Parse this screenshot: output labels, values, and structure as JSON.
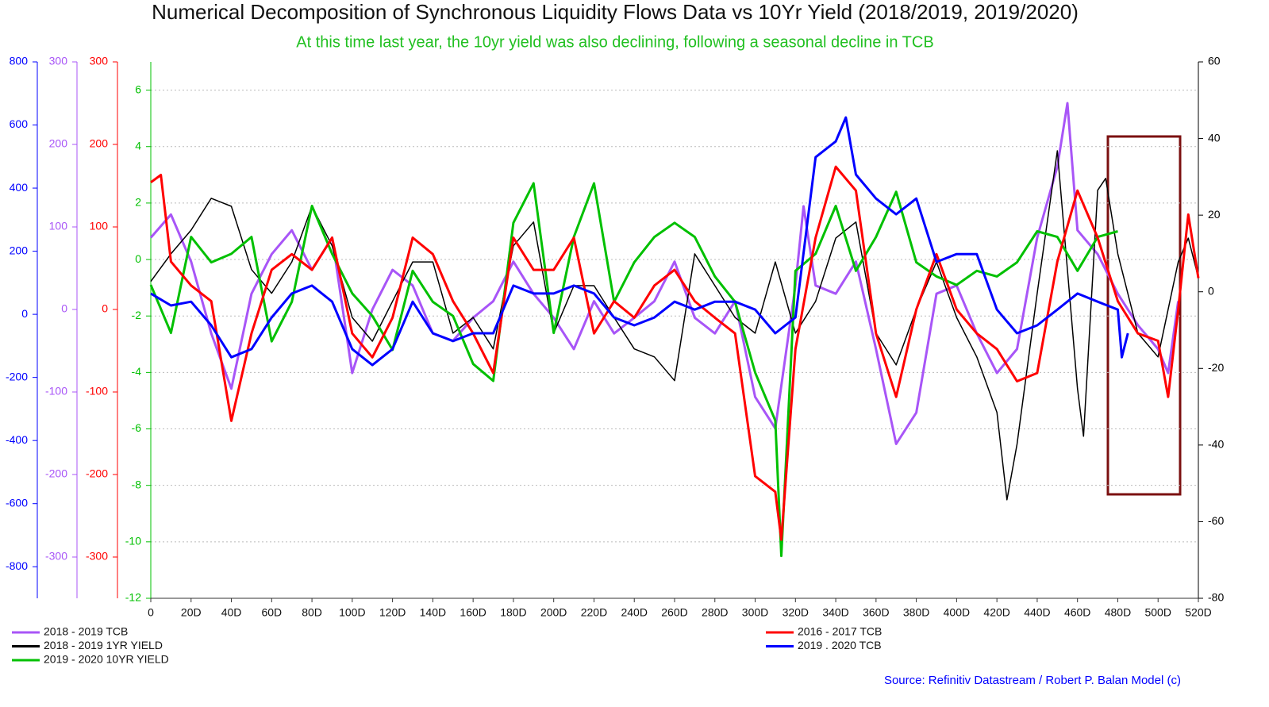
{
  "chart_data": {
    "type": "line",
    "title": "Numerical Decomposition of Synchronous Liquidity Flows Data vs 10Yr Yield (2018/2019, 2019/2020)",
    "subtitle": "At this time last year, the 10yr yield was also declining, following a seasonal decline in TCB",
    "source": "Source: Refinitiv Datastream /  Robert P. Balan Model (c)",
    "xlim": [
      0,
      520
    ],
    "xticks": [
      0,
      {
        "value": 20,
        "label": "20D"
      },
      {
        "value": 40,
        "label": "40D"
      },
      {
        "value": 60,
        "label": "60D"
      },
      {
        "value": 80,
        "label": "80D"
      },
      {
        "value": 100,
        "label": "100D"
      },
      {
        "value": 120,
        "label": "120D"
      },
      {
        "value": 140,
        "label": "140D"
      },
      {
        "value": 160,
        "label": "160D"
      },
      {
        "value": 180,
        "label": "180D"
      },
      {
        "value": 200,
        "label": "200D"
      },
      {
        "value": 220,
        "label": "220D"
      },
      {
        "value": 240,
        "label": "240D"
      },
      {
        "value": 260,
        "label": "260D"
      },
      {
        "value": 280,
        "label": "280D"
      },
      {
        "value": 300,
        "label": "300D"
      },
      {
        "value": 320,
        "label": "320D"
      },
      {
        "value": 340,
        "label": "340D"
      },
      {
        "value": 360,
        "label": "360D"
      },
      {
        "value": 380,
        "label": "380D"
      },
      {
        "value": 400,
        "label": "400D"
      },
      {
        "value": 420,
        "label": "420D"
      },
      {
        "value": 440,
        "label": "440D"
      },
      {
        "value": 460,
        "label": "460D"
      },
      {
        "value": 480,
        "label": "480D"
      },
      {
        "value": 500,
        "label": "500D"
      },
      {
        "value": 520,
        "label": "520D"
      }
    ],
    "ylim": [
      -12,
      7
    ],
    "yticks": [
      -12,
      -10,
      -8,
      -6,
      -4,
      -2,
      0,
      2,
      4,
      6
    ],
    "ycolor": "#00c000",
    "y2lim": [
      -80,
      60
    ],
    "y2ticks": [
      -80,
      -60,
      -40,
      -20,
      0,
      20,
      40,
      60
    ],
    "y2color": "#000000",
    "y3lim": [
      -900,
      800
    ],
    "y3ticks": [
      -800,
      -600,
      -400,
      -200,
      0,
      200,
      400,
      600,
      800
    ],
    "y3color": "#0000ff",
    "y4lim": [
      -350,
      300
    ],
    "y4ticks": [
      -300,
      -200,
      -100,
      0,
      100,
      200,
      300
    ],
    "y4color": "#a855f7",
    "y5lim": [
      -350,
      300
    ],
    "y5ticks": [
      -300,
      -200,
      -100,
      0,
      100,
      200,
      300
    ],
    "y5color": "#ff0000",
    "grid": true,
    "series": [
      {
        "name": "2018 - 2019 TCB",
        "color": "#a855f7",
        "axis": "y4",
        "x": [
          0,
          10,
          20,
          30,
          40,
          50,
          60,
          70,
          80,
          90,
          100,
          110,
          120,
          130,
          140,
          150,
          160,
          170,
          180,
          190,
          200,
          210,
          220,
          230,
          240,
          250,
          260,
          270,
          280,
          290,
          300,
          310,
          320,
          324,
          330,
          340,
          350,
          360,
          370,
          380,
          390,
          400,
          410,
          420,
          430,
          440,
          450,
          455,
          460,
          470,
          480,
          490,
          500,
          505,
          510
        ],
        "values": [
          87,
          115,
          58,
          -29,
          -96,
          19,
          67,
          96,
          48,
          87,
          -77,
          0,
          48,
          29,
          -29,
          -38,
          -10,
          10,
          58,
          19,
          -10,
          -48,
          10,
          -29,
          -10,
          10,
          58,
          -10,
          -29,
          10,
          -106,
          -144,
          29,
          125,
          29,
          19,
          58,
          -48,
          -163,
          -125,
          19,
          29,
          -29,
          -77,
          -48,
          87,
          173,
          250,
          96,
          67,
          19,
          -19,
          -48,
          -77,
          10
        ]
      },
      {
        "name": "2018 - 2019 1YR YIELD",
        "color": "#000000",
        "axis": "y2",
        "x": [
          0,
          10,
          20,
          30,
          40,
          50,
          60,
          70,
          80,
          90,
          100,
          110,
          120,
          130,
          140,
          150,
          160,
          170,
          180,
          190,
          200,
          210,
          220,
          230,
          240,
          250,
          260,
          270,
          280,
          290,
          300,
          310,
          320,
          330,
          340,
          350,
          360,
          370,
          380,
          390,
          400,
          410,
          420,
          425,
          430,
          440,
          450,
          460,
          463,
          470,
          474,
          480,
          490,
          500,
          510,
          515,
          520
        ],
        "values": [
          2.7,
          9.9,
          16.1,
          24.4,
          22.3,
          5.8,
          -0.4,
          7.8,
          22.3,
          12.0,
          -6.7,
          -12.9,
          -2.5,
          7.8,
          7.8,
          -10.8,
          -6.7,
          -14.9,
          12.0,
          18.2,
          -10.8,
          1.6,
          1.6,
          -6.7,
          -14.9,
          -17.0,
          -23.2,
          9.9,
          1.6,
          -6.7,
          -10.8,
          7.8,
          -10.8,
          -2.5,
          14.0,
          18.2,
          -10.8,
          -19.1,
          -4.6,
          7.8,
          -6.7,
          -17.0,
          -31.5,
          -54.3,
          -39.8,
          -0.4,
          36.8,
          -25.3,
          -37.7,
          26.5,
          29.6,
          9.9,
          -10.8,
          -17.0,
          7.8,
          14.0,
          3.7
        ]
      },
      {
        "name": "2019 - 2020 10YR YIELD",
        "color": "#00c000",
        "axis": "y",
        "x": [
          0,
          10,
          20,
          30,
          40,
          50,
          60,
          70,
          80,
          90,
          100,
          110,
          120,
          130,
          140,
          150,
          160,
          170,
          180,
          190,
          200,
          210,
          220,
          230,
          240,
          250,
          260,
          270,
          280,
          290,
          300,
          310,
          313,
          320,
          330,
          340,
          350,
          360,
          370,
          380,
          390,
          400,
          410,
          420,
          430,
          440,
          450,
          460,
          470,
          480
        ],
        "values": [
          -0.9,
          -2.6,
          0.8,
          -0.1,
          0.2,
          0.8,
          -2.9,
          -1.5,
          1.9,
          0.2,
          -1.2,
          -2.0,
          -3.2,
          -0.4,
          -1.5,
          -2.0,
          -3.7,
          -4.3,
          1.3,
          2.7,
          -2.6,
          0.8,
          2.7,
          -1.5,
          -0.1,
          0.8,
          1.3,
          0.8,
          -0.6,
          -1.5,
          -4.0,
          -5.7,
          -10.5,
          -0.4,
          0.2,
          1.9,
          -0.4,
          0.8,
          2.4,
          -0.1,
          -0.6,
          -0.9,
          -0.4,
          -0.6,
          -0.1,
          1.0,
          0.8,
          -0.4,
          0.8,
          1.0
        ]
      },
      {
        "name": "2016 - 2017 TCB",
        "color": "#ff0000",
        "axis": "y5",
        "x": [
          0,
          5,
          10,
          20,
          30,
          40,
          50,
          60,
          70,
          80,
          90,
          100,
          110,
          120,
          130,
          140,
          150,
          160,
          170,
          180,
          190,
          200,
          210,
          220,
          230,
          240,
          250,
          260,
          270,
          280,
          290,
          300,
          310,
          313,
          320,
          330,
          340,
          350,
          360,
          370,
          380,
          390,
          400,
          410,
          420,
          430,
          440,
          450,
          460,
          470,
          480,
          490,
          500,
          505,
          510,
          515,
          520
        ],
        "values": [
          154,
          163,
          58,
          29,
          10,
          -135,
          -29,
          48,
          67,
          48,
          87,
          -29,
          -58,
          -10,
          87,
          67,
          10,
          -29,
          -77,
          87,
          48,
          48,
          87,
          -29,
          10,
          -10,
          29,
          48,
          10,
          -10,
          -29,
          -202,
          -221,
          -279,
          -48,
          87,
          173,
          144,
          -29,
          -106,
          0,
          67,
          0,
          -29,
          -48,
          -87,
          -77,
          58,
          144,
          87,
          10,
          -29,
          -38,
          -106,
          0,
          115,
          38
        ]
      },
      {
        "name": "2019 . 2020 TCB",
        "color": "#0000ff",
        "axis": "y3",
        "x": [
          0,
          10,
          20,
          30,
          40,
          50,
          60,
          70,
          80,
          90,
          100,
          110,
          120,
          130,
          140,
          150,
          160,
          170,
          180,
          190,
          200,
          210,
          220,
          230,
          240,
          250,
          260,
          270,
          280,
          290,
          300,
          310,
          320,
          330,
          340,
          345,
          350,
          360,
          370,
          380,
          390,
          400,
          410,
          420,
          430,
          440,
          450,
          460,
          470,
          480,
          482,
          485
        ],
        "values": [
          66,
          28,
          40,
          -35,
          -136,
          -110,
          -10,
          66,
          91,
          40,
          -110,
          -161,
          -110,
          40,
          -60,
          -85,
          -60,
          -60,
          91,
          66,
          66,
          91,
          66,
          -10,
          -35,
          -10,
          40,
          15,
          40,
          40,
          15,
          -60,
          -10,
          498,
          548,
          624,
          443,
          367,
          317,
          367,
          166,
          191,
          191,
          15,
          -60,
          -35,
          15,
          66,
          40,
          15,
          -136,
          -60
        ]
      }
    ]
  }
}
